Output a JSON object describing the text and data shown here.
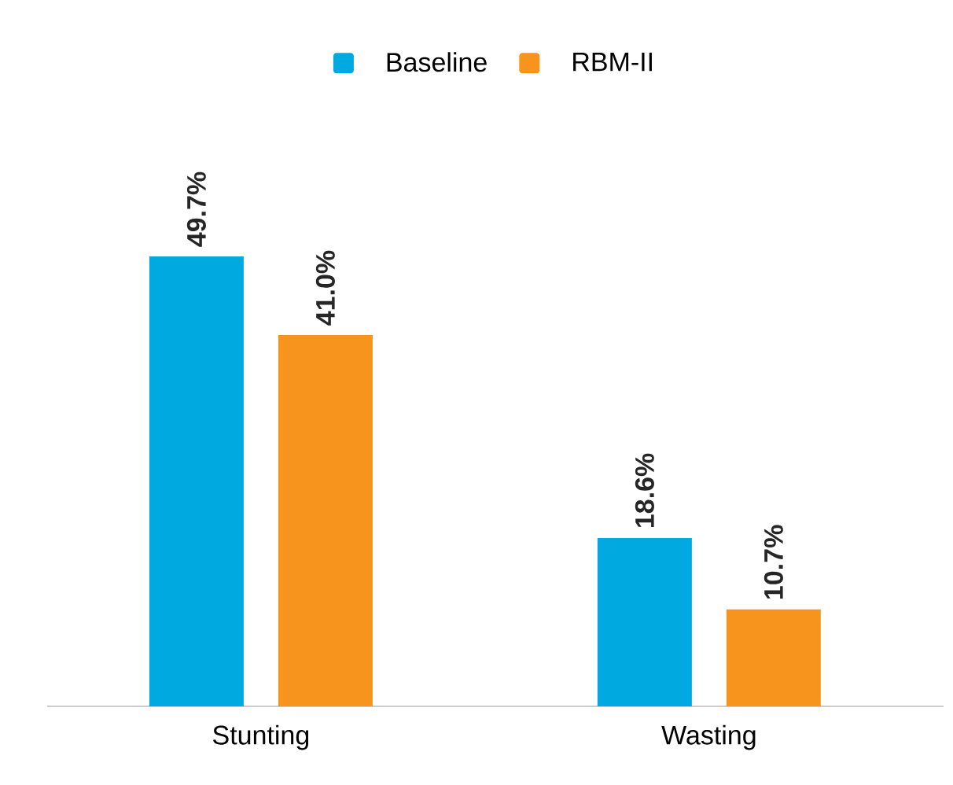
{
  "chart_data": {
    "type": "bar",
    "categories": [
      "Stunting",
      "Wasting"
    ],
    "series": [
      {
        "name": "Baseline",
        "color": "#00a9e0",
        "values": [
          49.7,
          18.6
        ],
        "value_labels": [
          "49.7%",
          "18.6%"
        ]
      },
      {
        "name": "RBM-II",
        "color": "#f7941d",
        "values": [
          41.0,
          10.7
        ],
        "value_labels": [
          "41.0%",
          "10.7%"
        ]
      }
    ],
    "legend": "top"
  }
}
